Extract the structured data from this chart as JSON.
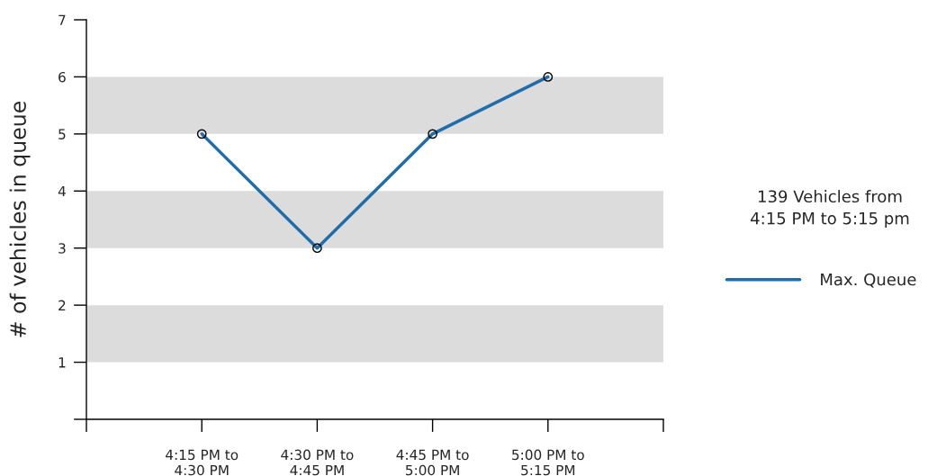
{
  "chart_data": {
    "type": "line",
    "ylabel": "# of vehicles in queue",
    "categories": [
      null,
      "4:15 PM to\n4:30 PM",
      "4:30 PM to\n4:45 PM",
      "4:45 PM to\n5:00 PM",
      "5:00 PM to\n5:15 PM",
      null
    ],
    "series": [
      {
        "name": "Max. Queue",
        "color": "#1f6dab",
        "values": [
          null,
          5,
          3,
          5,
          6,
          null
        ]
      }
    ],
    "ylim": [
      0,
      7
    ],
    "yticks": [
      {
        "value": 0,
        "label": null
      },
      1,
      2,
      3,
      4,
      5,
      6,
      7
    ],
    "bands": [
      {
        "axis": "y",
        "from": 1,
        "to": 2,
        "color": "#dcdcdc"
      },
      {
        "axis": "y",
        "from": 3,
        "to": 4,
        "color": "#dcdcdc"
      },
      {
        "axis": "y",
        "from": 5,
        "to": 6,
        "color": "#dcdcdc"
      }
    ],
    "annotations": [
      "139 Vehicles from\n4:15 PM to 5:15 pm"
    ],
    "marker": "circle",
    "line_style": "solid",
    "grid": false,
    "legend": "right"
  }
}
